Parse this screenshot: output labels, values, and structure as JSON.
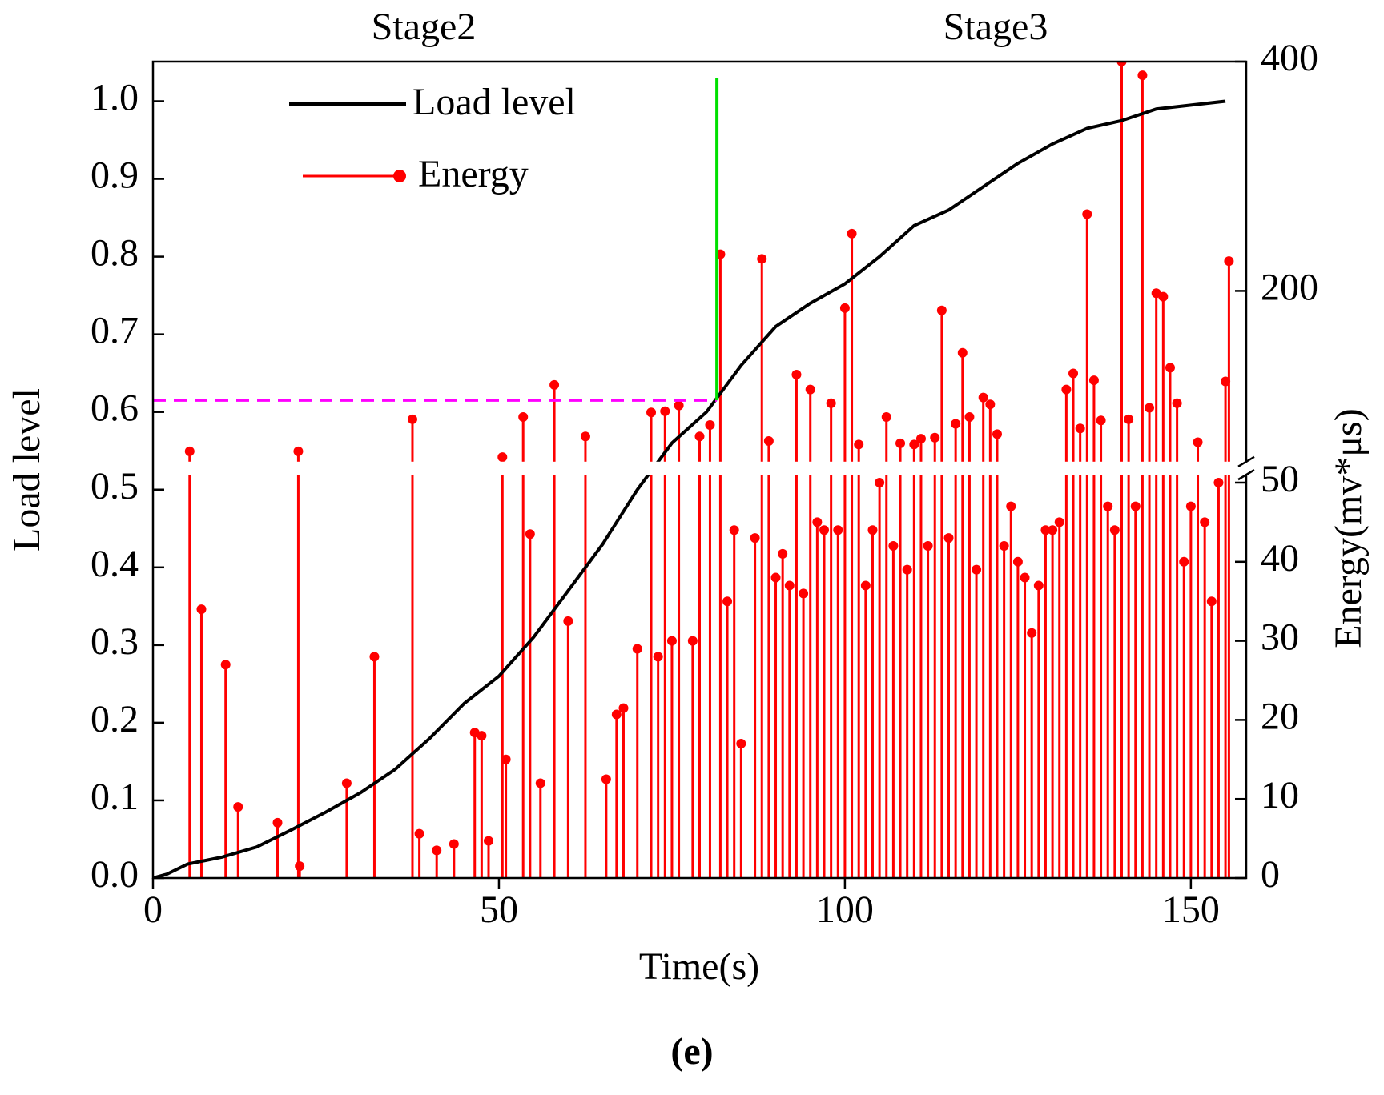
{
  "chart_data": {
    "type": "line",
    "annotations": [
      "Stage2",
      "Stage3"
    ],
    "caption": "(e)",
    "xlabel": "Time(s)",
    "ylabel": "Load level",
    "y2label": "Energy(mv*μs)",
    "xlim": [
      0,
      158
    ],
    "xticks": [
      0,
      50,
      100,
      150
    ],
    "ylim": [
      0,
      1.051
    ],
    "yticks": [
      {
        "value": 0,
        "label": "0.0"
      },
      0.1,
      0.2,
      0.3,
      0.4,
      0.5,
      0.6,
      0.7,
      0.8,
      0.9,
      {
        "value": 1,
        "label": "1.0"
      }
    ],
    "y2lim": [
      0,
      400
    ],
    "y2break": 51,
    "y2ticks": [
      0,
      10,
      20,
      30,
      40,
      50,
      200,
      400
    ],
    "grid": false,
    "vline": {
      "x": 81.5,
      "color": "#00e000"
    },
    "hline": {
      "y": 0.615,
      "color": "#ff00ff"
    },
    "series": [
      {
        "name": "Load level",
        "color": "#000000",
        "x": [
          0,
          2,
          5,
          10,
          15,
          20,
          25,
          30,
          35,
          40,
          45,
          50,
          55,
          60,
          65,
          70,
          75,
          80,
          85,
          90,
          95,
          100,
          105,
          110,
          115,
          120,
          125,
          130,
          135,
          140,
          145,
          150,
          155
        ],
        "values": [
          0,
          0.005,
          0.018,
          0.027,
          0.04,
          0.062,
          0.085,
          0.11,
          0.14,
          0.18,
          0.225,
          0.26,
          0.31,
          0.37,
          0.43,
          0.5,
          0.56,
          0.6,
          0.66,
          0.71,
          0.74,
          0.765,
          0.8,
          0.84,
          0.86,
          0.89,
          0.92,
          0.945,
          0.965,
          0.975,
          0.99,
          0.995,
          1.0
        ]
      },
      {
        "name": "Energy",
        "color": "#ff0000",
        "axis": "y2",
        "x": [
          5.3,
          7,
          10.5,
          12.3,
          18,
          21,
          21.2,
          28,
          32,
          37.5,
          38.5,
          41,
          43.5,
          46.5,
          47.5,
          48.5,
          50.5,
          51,
          53.5,
          54.5,
          56,
          58,
          60,
          62.5,
          65.5,
          67,
          68,
          70,
          72,
          73,
          74,
          75,
          76,
          78,
          79,
          80.5,
          82,
          83,
          84,
          85,
          87,
          88,
          89,
          90,
          91,
          92,
          93,
          94,
          95,
          96,
          97,
          98,
          99,
          100,
          101,
          102,
          103,
          104,
          105,
          106,
          107,
          108,
          109,
          110,
          111,
          112,
          113,
          114,
          115,
          116,
          117,
          118,
          119,
          120,
          121,
          122,
          123,
          124,
          125,
          126,
          127,
          128,
          129,
          130,
          131,
          132,
          133,
          134,
          135,
          136,
          137,
          138,
          139,
          140,
          141,
          142,
          143,
          144,
          145,
          146,
          147,
          148,
          149,
          150,
          151,
          152,
          153,
          154,
          155,
          155.5
        ],
        "values": [
          60,
          34,
          27,
          9,
          7,
          60,
          1.5,
          12,
          28,
          88,
          5.6,
          3.5,
          4.3,
          18.4,
          18,
          4.7,
          55,
          15,
          90,
          43.5,
          12,
          118,
          32.5,
          73,
          12.5,
          20.7,
          21.5,
          29,
          94,
          28,
          95,
          30,
          100,
          30,
          73,
          83,
          232,
          35,
          44,
          17,
          43,
          228,
          69,
          38,
          41,
          37,
          127,
          36,
          114,
          45,
          44,
          102,
          44,
          185,
          250,
          66,
          37,
          44,
          50,
          90,
          42,
          67,
          39,
          66,
          71,
          42,
          72,
          183,
          43,
          84,
          146,
          90,
          39,
          107,
          101,
          75,
          42,
          47,
          40,
          38,
          31,
          37,
          44,
          44,
          45,
          114,
          128,
          80,
          267,
          122,
          87,
          47,
          44,
          400,
          88,
          47,
          388,
          98,
          198,
          195,
          133,
          102,
          40,
          47,
          68,
          45,
          35,
          50,
          121,
          226
        ]
      }
    ]
  }
}
